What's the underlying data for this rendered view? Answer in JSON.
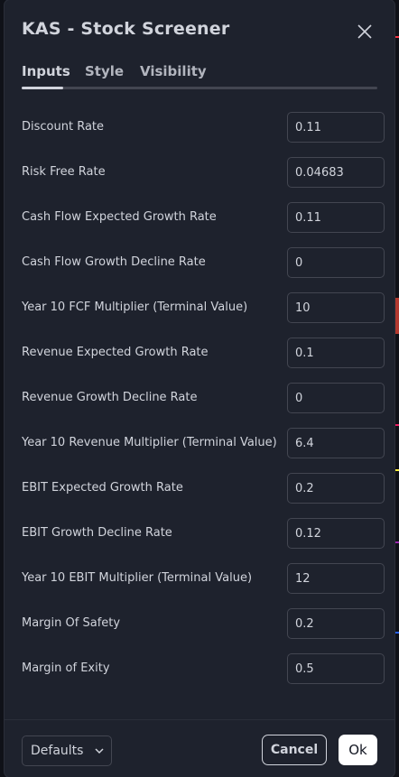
{
  "dialog": {
    "title": "KAS - Stock Screener",
    "close_icon": "close-icon"
  },
  "tabs": [
    {
      "label": "Inputs",
      "active": true
    },
    {
      "label": "Style",
      "active": false
    },
    {
      "label": "Visibility",
      "active": false
    }
  ],
  "inputs": [
    {
      "label": "Discount Rate",
      "value": "0.11"
    },
    {
      "label": "Risk Free Rate",
      "value": "0.04683"
    },
    {
      "label": "Cash Flow Expected Growth Rate",
      "value": "0.11"
    },
    {
      "label": "Cash Flow Growth Decline Rate",
      "value": "0"
    },
    {
      "label": "Year 10 FCF Multiplier (Terminal Value)",
      "value": "10"
    },
    {
      "label": "Revenue Expected Growth Rate",
      "value": "0.1"
    },
    {
      "label": "Revenue Growth Decline Rate",
      "value": "0"
    },
    {
      "label": "Year 10 Revenue Multiplier (Terminal Value)",
      "value": "6.4"
    },
    {
      "label": "EBIT Expected Growth Rate",
      "value": "0.2"
    },
    {
      "label": "EBIT Growth Decline Rate",
      "value": "0.12"
    },
    {
      "label": "Year 10 EBIT Multiplier (Terminal Value)",
      "value": "12"
    },
    {
      "label": "Margin Of Safety",
      "value": "0.2"
    },
    {
      "label": "Margin of Exity",
      "value": "0.5"
    }
  ],
  "footer": {
    "defaults_label": "Defaults",
    "cancel_label": "Cancel",
    "ok_label": "Ok"
  },
  "colors": {
    "dialog_bg": "#1e222d",
    "text": "#d1d4dc",
    "border": "#434651",
    "ok_bg": "#ffffff"
  }
}
